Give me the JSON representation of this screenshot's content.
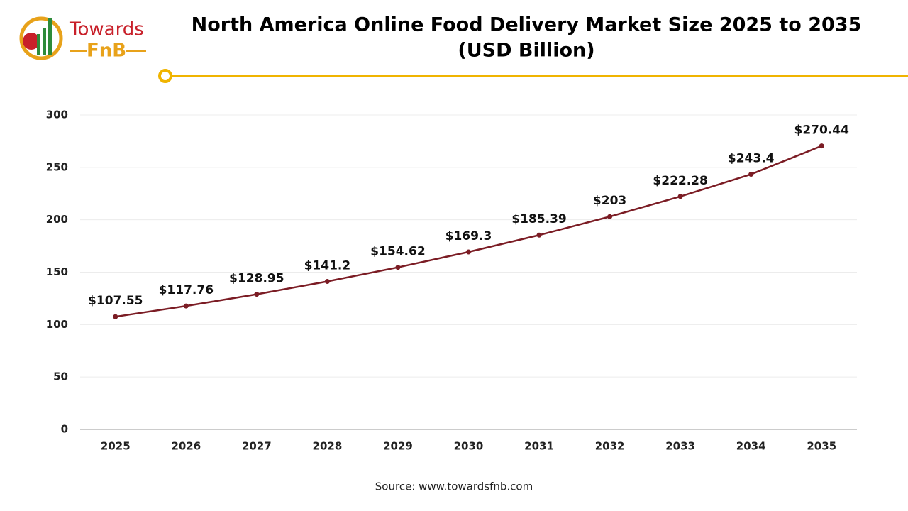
{
  "logo": {
    "top": "Towards",
    "bottom": "FnB"
  },
  "chart_data": {
    "type": "line",
    "title": "North America Online Food Delivery Market Size 2025 to 2035",
    "subtitle": "(USD Billion)",
    "categories": [
      "2025",
      "2026",
      "2027",
      "2028",
      "2029",
      "2030",
      "2031",
      "2032",
      "2033",
      "2034",
      "2035"
    ],
    "values": [
      107.55,
      117.76,
      128.95,
      141.2,
      154.62,
      169.3,
      185.39,
      203,
      222.28,
      243.4,
      270.44
    ],
    "value_labels": [
      "$107.55",
      "$117.76",
      "$128.95",
      "$141.2",
      "$154.62",
      "$169.3",
      "$185.39",
      "$203",
      "$222.28",
      "$243.4",
      "$270.44"
    ],
    "color": "#7b1c24",
    "ylim": [
      0,
      300
    ],
    "yticks": [
      0,
      50,
      100,
      150,
      200,
      250,
      300
    ],
    "grid": true
  },
  "source": "Source: www.towardsfnb.com"
}
